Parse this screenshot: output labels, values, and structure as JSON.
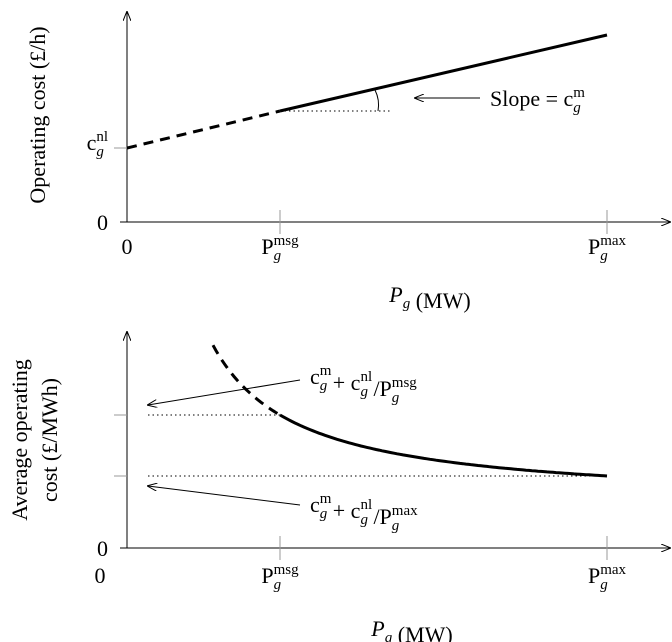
{
  "top": {
    "y_label": "Operating cost (£/h)",
    "y_ticks": [
      [
        {
          "t": "0"
        }
      ],
      [
        {
          "t": "c",
          "sub": "g",
          "sup": "nl"
        }
      ]
    ],
    "x_ticks": [
      [
        {
          "t": "0"
        }
      ],
      [
        {
          "t": "P",
          "sub": "g",
          "sup": "msg"
        }
      ],
      [
        {
          "t": "P",
          "sub": "g",
          "sup": "max"
        }
      ]
    ],
    "x_label": [
      {
        "t": "P",
        "sub": "g"
      },
      {
        "t": " (MW)"
      }
    ],
    "annotation": [
      {
        "t": "Slope = c",
        "sub": "g",
        "sup": "m"
      }
    ]
  },
  "bottom": {
    "y_label": [
      "Average operating",
      "cost (£/MWh)"
    ],
    "y_ticks": [
      [
        {
          "t": "0"
        }
      ]
    ],
    "x_ticks": [
      [
        {
          "t": "0"
        }
      ],
      [
        {
          "t": "P",
          "sub": "g",
          "sup": "msg"
        }
      ],
      [
        {
          "t": "P",
          "sub": "g",
          "sup": "max"
        }
      ]
    ],
    "x_label": [
      {
        "t": "P",
        "sub": "g"
      },
      {
        "t": " (MW)"
      }
    ],
    "annotations": [
      [
        {
          "t": "c",
          "sub": "g",
          "sup": "m"
        },
        {
          "t": " + c",
          "sub": "g",
          "sup": "nl"
        },
        {
          "t": " /P",
          "sub": "g",
          "sup": "msg"
        }
      ],
      [
        {
          "t": "c",
          "sub": "g",
          "sup": "m"
        },
        {
          "t": " + c",
          "sub": "g",
          "sup": "nl"
        },
        {
          "t": " /P",
          "sub": "g",
          "sup": "max"
        }
      ]
    ]
  }
}
